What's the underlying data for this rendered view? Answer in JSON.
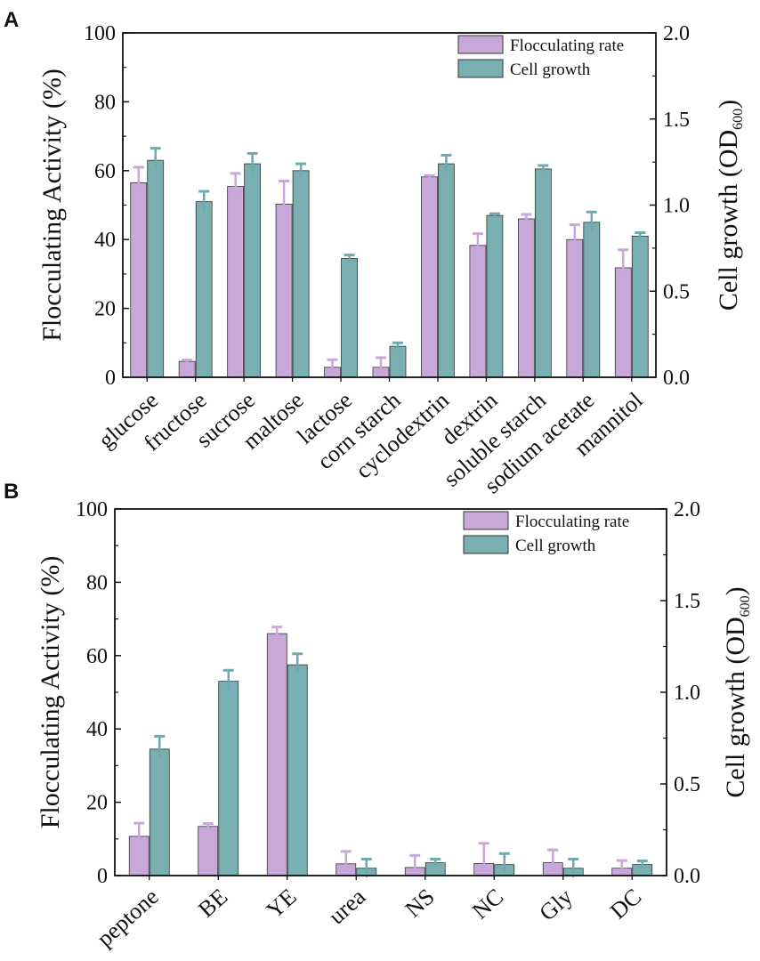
{
  "chart_data": [
    {
      "panel_label": "A",
      "type": "bar",
      "categories": [
        "glucose",
        "fructose",
        "sucrose",
        "maltose",
        "lactose",
        "corn starch",
        "cyclodextrin",
        "dextrin",
        "soluble starch",
        "sodium acetate",
        "mannitol"
      ],
      "series": [
        {
          "name": "Flocculating rate",
          "axis": "left",
          "color": "#c8a8d8",
          "values": [
            56.5,
            4.6,
            55.4,
            50.3,
            2.9,
            2.9,
            58.2,
            38.3,
            46.0,
            40.0,
            31.8
          ],
          "errors": [
            4.5,
            0.4,
            3.8,
            6.7,
            2.2,
            2.8,
            0.4,
            3.4,
            1.3,
            4.3,
            5.2
          ]
        },
        {
          "name": "Cell growth",
          "axis": "right",
          "color": "#7aafb1",
          "values": [
            1.26,
            1.02,
            1.24,
            1.2,
            0.69,
            0.18,
            1.24,
            0.94,
            1.21,
            0.9,
            0.82
          ],
          "errors": [
            0.07,
            0.06,
            0.06,
            0.04,
            0.02,
            0.02,
            0.05,
            0.01,
            0.02,
            0.06,
            0.02
          ]
        }
      ],
      "ylabel": "Flocculating Activity (%)",
      "ylim": [
        0,
        100
      ],
      "yticks": [
        "0",
        "20",
        "40",
        "60",
        "80",
        "100"
      ],
      "y2label_main": "Cell growth (OD",
      "y2label_sub": "600",
      "y2label_close": ")",
      "y2lim": [
        0,
        2.0
      ],
      "y2ticks": [
        "0.0",
        "0.5",
        "1.0",
        "1.5",
        "2.0"
      ],
      "legend": [
        "Flocculating rate",
        "Cell growth"
      ],
      "legend_position": "top-right"
    },
    {
      "panel_label": "B",
      "type": "bar",
      "categories": [
        "peptone",
        "BE",
        "YE",
        "urea",
        "NS",
        "NC",
        "Gly",
        "DC"
      ],
      "series": [
        {
          "name": "Flocculating rate",
          "axis": "left",
          "color": "#c8a8d8",
          "values": [
            10.7,
            13.4,
            66.0,
            3.2,
            2.2,
            3.3,
            3.5,
            2.0
          ],
          "errors": [
            3.6,
            0.8,
            1.8,
            3.4,
            3.3,
            5.5,
            3.5,
            2.1
          ]
        },
        {
          "name": "Cell growth",
          "axis": "right",
          "color": "#7aafb1",
          "values": [
            0.69,
            1.06,
            1.15,
            0.04,
            0.07,
            0.06,
            0.04,
            0.06
          ],
          "errors": [
            0.07,
            0.06,
            0.06,
            0.05,
            0.02,
            0.06,
            0.05,
            0.02
          ]
        }
      ],
      "ylabel": "Flocculating Activity (%)",
      "ylim": [
        0,
        100
      ],
      "yticks": [
        "0",
        "20",
        "40",
        "60",
        "80",
        "100"
      ],
      "y2label_main": "Cell growth (OD",
      "y2label_sub": "600",
      "y2label_close": ")",
      "y2lim": [
        0,
        2.0
      ],
      "y2ticks": [
        "0.0",
        "0.5",
        "1.0",
        "1.5",
        "2.0"
      ],
      "legend": [
        "Flocculating rate",
        "Cell growth"
      ],
      "legend_position": "top-right"
    }
  ]
}
